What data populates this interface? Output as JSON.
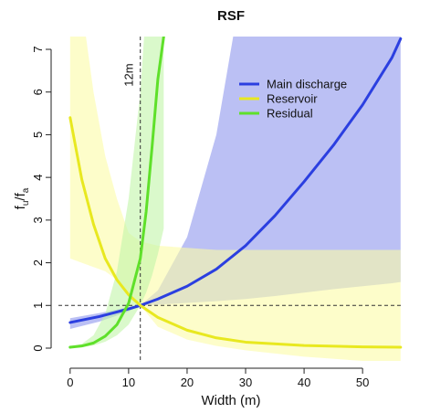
{
  "chart_data": {
    "type": "line",
    "title": "RSF",
    "xlabel": "Width (m)",
    "ylabel": {
      "main": "f",
      "sub1": "u",
      "slash": "/f",
      "sub2": "a"
    },
    "xlim": [
      -2,
      57
    ],
    "ylim": [
      -0.3,
      7.3
    ],
    "xticks": [
      0,
      10,
      20,
      30,
      40,
      50
    ],
    "yticks": [
      0,
      1,
      2,
      3,
      4,
      5,
      6,
      7
    ],
    "grid": false,
    "legend_position": "top-right",
    "reference_lines": {
      "horizontal_y": 1,
      "vertical_x": 12
    },
    "annotation": {
      "text": "12m",
      "x": 12,
      "y": 6.4
    },
    "series": [
      {
        "name": "Main discharge",
        "color": "#2b3fe0",
        "band_color": "#8e96ec",
        "x": [
          0,
          5,
          10,
          12,
          15,
          20,
          25,
          30,
          35,
          40,
          45,
          50,
          55,
          56.5
        ],
        "values": [
          0.6,
          0.74,
          0.92,
          1.0,
          1.15,
          1.45,
          1.85,
          2.4,
          3.1,
          3.9,
          4.75,
          5.7,
          6.8,
          7.25
        ],
        "band_upper": [
          0.7,
          0.82,
          0.96,
          1.0,
          1.35,
          2.6,
          5.0,
          9.0,
          13.0,
          17.0,
          21.0,
          25.0,
          29.0,
          30.0
        ],
        "band_lower": [
          0.45,
          0.62,
          0.86,
          1.0,
          1.02,
          1.06,
          1.1,
          1.15,
          1.22,
          1.3,
          1.38,
          1.45,
          1.52,
          1.55
        ]
      },
      {
        "name": "Reservoir",
        "color": "#e8e820",
        "band_color": "#fbfba6",
        "x": [
          0,
          2,
          4,
          6,
          8,
          10,
          12,
          15,
          20,
          25,
          30,
          40,
          50,
          56.5
        ],
        "values": [
          5.4,
          3.95,
          2.9,
          2.1,
          1.6,
          1.25,
          1.0,
          0.72,
          0.42,
          0.24,
          0.14,
          0.06,
          0.03,
          0.02
        ],
        "band_upper": [
          10.0,
          8.0,
          6.0,
          4.5,
          3.5,
          2.7,
          2.5,
          2.4,
          2.35,
          2.3,
          2.3,
          2.3,
          2.3,
          2.3
        ],
        "band_lower": [
          2.1,
          2.0,
          1.9,
          1.8,
          1.6,
          1.3,
          1.0,
          0.5,
          0.2,
          0.05,
          -0.05,
          -0.2,
          -0.3,
          -0.3
        ]
      },
      {
        "name": "Residual",
        "color": "#5fe02a",
        "band_color": "#c2f5a8",
        "x": [
          0,
          2,
          4,
          6,
          8,
          10,
          12,
          13,
          14,
          15,
          16
        ],
        "values": [
          0.02,
          0.05,
          0.12,
          0.28,
          0.55,
          1.05,
          2.1,
          3.2,
          4.7,
          6.3,
          7.3
        ],
        "band_upper": [
          0.04,
          0.1,
          0.3,
          0.8,
          1.8,
          3.5,
          6.0,
          8.0,
          9.5,
          10.0,
          10.0
        ],
        "band_lower": [
          0.0,
          0.02,
          0.06,
          0.15,
          0.3,
          0.55,
          1.0,
          1.3,
          1.7,
          2.2,
          2.8
        ]
      }
    ]
  }
}
